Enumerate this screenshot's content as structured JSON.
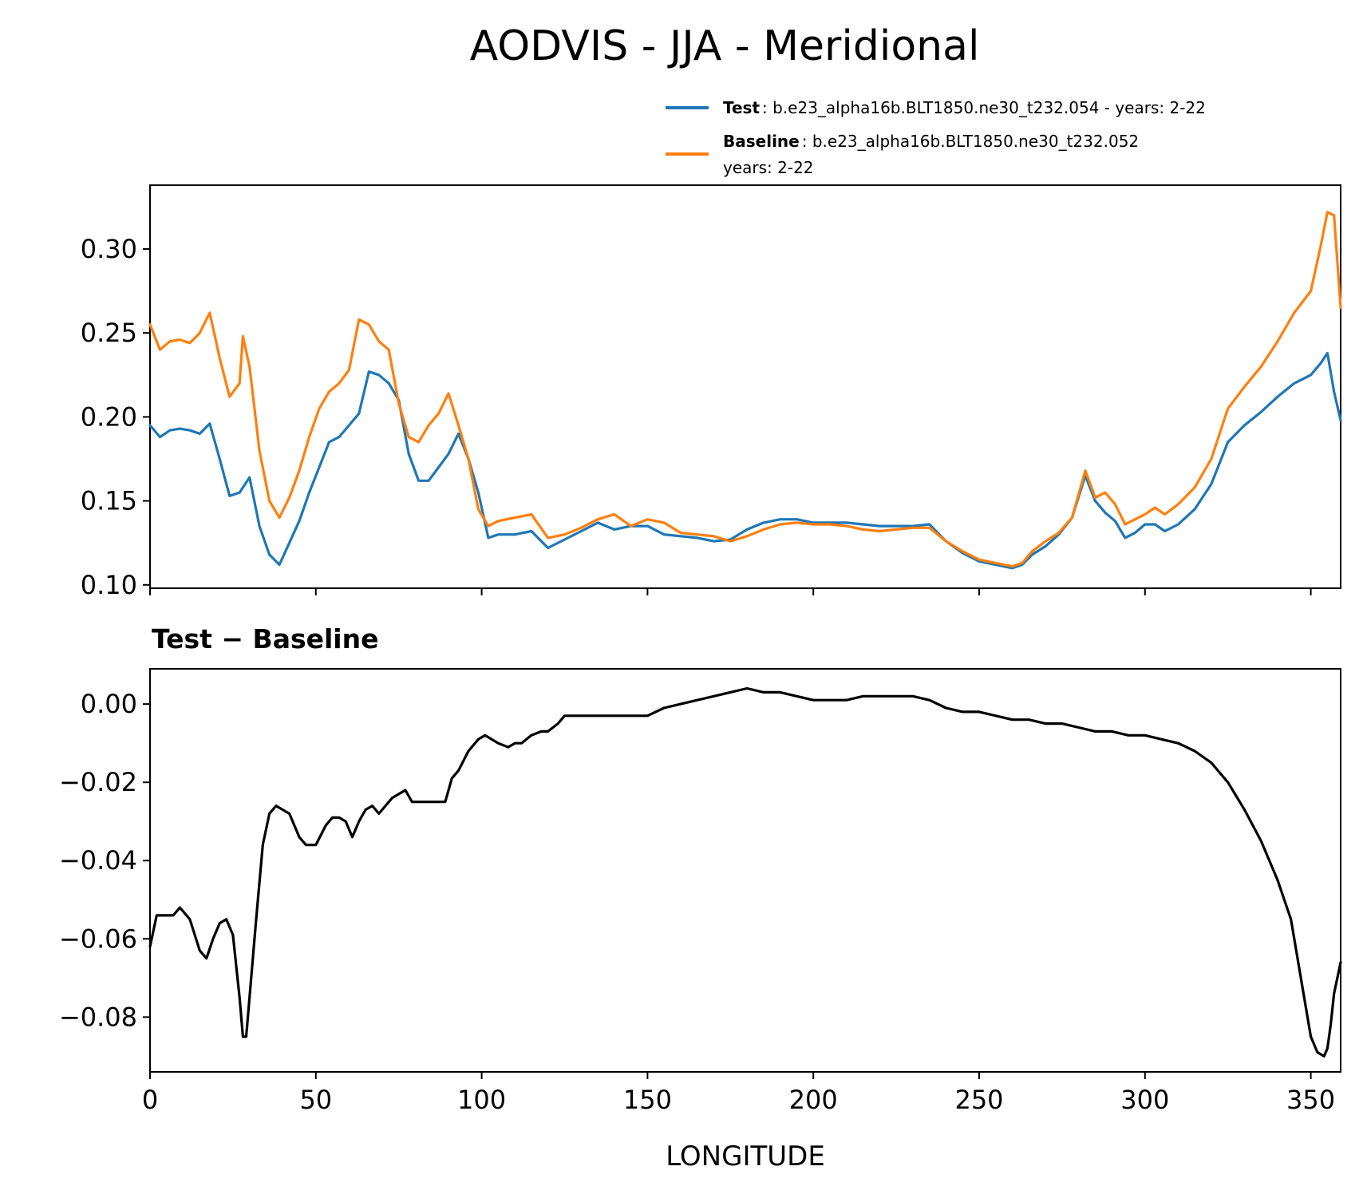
{
  "chart_data": [
    {
      "type": "line",
      "title": "AODVIS - JJA - Meridional",
      "xlabel": "",
      "ylabel": "",
      "xlim": [
        0,
        359
      ],
      "ylim": [
        0.098,
        0.338
      ],
      "xticks": [
        0,
        50,
        100,
        150,
        200,
        250,
        300,
        350
      ],
      "yticks": [
        0.1,
        0.15,
        0.2,
        0.25,
        0.3
      ],
      "ytick_labels": [
        "0.10",
        "0.15",
        "0.20",
        "0.25",
        "0.30"
      ],
      "legend_position": "top-right, above plot",
      "legend": [
        {
          "name": "Test",
          "desc": ": b.e23_alpha16b.BLT1850.ne30_t232.054 - years: 2-22",
          "desc2": "",
          "color": "#1f77b4"
        },
        {
          "name": "Baseline",
          "desc": ": b.e23_alpha16b.BLT1850.ne30_t232.052",
          "desc2": "years: 2-22",
          "color": "#ff7f0e"
        }
      ],
      "series": [
        {
          "name": "Test",
          "color": "#1f77b4",
          "x": [
            0,
            3,
            6,
            9,
            12,
            15,
            18,
            21,
            24,
            27,
            30,
            33,
            36,
            39,
            42,
            45,
            48,
            51,
            54,
            57,
            60,
            63,
            66,
            69,
            72,
            75,
            78,
            81,
            84,
            87,
            90,
            93,
            96,
            99,
            102,
            105,
            110,
            115,
            120,
            125,
            130,
            135,
            140,
            145,
            150,
            155,
            160,
            165,
            170,
            175,
            180,
            185,
            190,
            195,
            200,
            205,
            210,
            215,
            220,
            225,
            230,
            235,
            240,
            245,
            250,
            255,
            260,
            263,
            266,
            270,
            274,
            278,
            282,
            285,
            288,
            291,
            294,
            297,
            300,
            303,
            306,
            310,
            315,
            320,
            325,
            330,
            335,
            340,
            345,
            350,
            353,
            355,
            357,
            359
          ],
          "values": [
            0.195,
            0.188,
            0.192,
            0.193,
            0.192,
            0.19,
            0.196,
            0.175,
            0.153,
            0.155,
            0.164,
            0.135,
            0.118,
            0.112,
            0.125,
            0.138,
            0.155,
            0.17,
            0.185,
            0.188,
            0.195,
            0.202,
            0.227,
            0.225,
            0.22,
            0.21,
            0.178,
            0.162,
            0.162,
            0.17,
            0.178,
            0.19,
            0.175,
            0.155,
            0.128,
            0.13,
            0.13,
            0.132,
            0.122,
            0.127,
            0.132,
            0.137,
            0.133,
            0.135,
            0.135,
            0.13,
            0.129,
            0.128,
            0.126,
            0.127,
            0.133,
            0.137,
            0.139,
            0.139,
            0.137,
            0.137,
            0.137,
            0.136,
            0.135,
            0.135,
            0.135,
            0.136,
            0.126,
            0.119,
            0.114,
            0.112,
            0.11,
            0.112,
            0.118,
            0.123,
            0.13,
            0.14,
            0.165,
            0.15,
            0.143,
            0.138,
            0.128,
            0.131,
            0.136,
            0.136,
            0.132,
            0.136,
            0.145,
            0.16,
            0.185,
            0.195,
            0.203,
            0.212,
            0.22,
            0.225,
            0.232,
            0.238,
            0.215,
            0.198
          ]
        },
        {
          "name": "Baseline",
          "color": "#ff7f0e",
          "x": [
            0,
            3,
            6,
            9,
            12,
            15,
            18,
            21,
            24,
            27,
            28,
            30,
            33,
            36,
            39,
            42,
            45,
            48,
            51,
            54,
            57,
            60,
            63,
            66,
            69,
            72,
            75,
            78,
            81,
            84,
            87,
            90,
            93,
            96,
            99,
            102,
            105,
            110,
            115,
            120,
            125,
            130,
            135,
            140,
            145,
            150,
            155,
            160,
            165,
            170,
            175,
            180,
            185,
            190,
            195,
            200,
            205,
            210,
            215,
            220,
            225,
            230,
            235,
            240,
            245,
            250,
            255,
            260,
            263,
            266,
            270,
            274,
            278,
            282,
            285,
            288,
            291,
            294,
            297,
            300,
            303,
            306,
            310,
            315,
            320,
            325,
            330,
            335,
            340,
            345,
            350,
            353,
            355,
            357,
            359
          ],
          "values": [
            0.255,
            0.24,
            0.245,
            0.246,
            0.244,
            0.25,
            0.262,
            0.235,
            0.212,
            0.22,
            0.248,
            0.23,
            0.18,
            0.15,
            0.14,
            0.152,
            0.168,
            0.188,
            0.205,
            0.215,
            0.22,
            0.228,
            0.258,
            0.255,
            0.245,
            0.24,
            0.208,
            0.188,
            0.185,
            0.195,
            0.202,
            0.214,
            0.195,
            0.175,
            0.145,
            0.135,
            0.138,
            0.14,
            0.142,
            0.128,
            0.13,
            0.134,
            0.139,
            0.142,
            0.135,
            0.139,
            0.137,
            0.131,
            0.13,
            0.129,
            0.126,
            0.129,
            0.133,
            0.136,
            0.137,
            0.136,
            0.136,
            0.135,
            0.133,
            0.132,
            0.133,
            0.134,
            0.134,
            0.126,
            0.12,
            0.115,
            0.113,
            0.111,
            0.113,
            0.12,
            0.126,
            0.131,
            0.14,
            0.168,
            0.152,
            0.155,
            0.148,
            0.136,
            0.139,
            0.142,
            0.146,
            0.142,
            0.148,
            0.158,
            0.175,
            0.205,
            0.218,
            0.23,
            0.245,
            0.262,
            0.275,
            0.302,
            0.322,
            0.32,
            0.265
          ]
        }
      ]
    },
    {
      "type": "line",
      "title": "Test − Baseline",
      "xlabel": "LONGITUDE",
      "ylabel": "",
      "xlim": [
        0,
        359
      ],
      "ylim": [
        -0.094,
        0.009
      ],
      "xticks": [
        0,
        50,
        100,
        150,
        200,
        250,
        300,
        350
      ],
      "xtick_labels": [
        "0",
        "50",
        "100",
        "150",
        "200",
        "250",
        "300",
        "350"
      ],
      "yticks": [
        0.0,
        -0.02,
        -0.04,
        -0.06,
        -0.08
      ],
      "ytick_labels": [
        "0.00",
        "−0.02",
        "−0.04",
        "−0.06",
        "−0.08"
      ],
      "series": [
        {
          "name": "Test − Baseline",
          "color": "#000000",
          "x": [
            0,
            2,
            4,
            7,
            9,
            12,
            15,
            17,
            19,
            21,
            23,
            25,
            27,
            28,
            29,
            30,
            32,
            34,
            36,
            38,
            40,
            42,
            45,
            47,
            50,
            53,
            55,
            57,
            59,
            61,
            63,
            65,
            67,
            69,
            71,
            73,
            75,
            77,
            79,
            81,
            83,
            85,
            87,
            89,
            91,
            93,
            96,
            99,
            101,
            103,
            105,
            108,
            110,
            112,
            115,
            118,
            120,
            123,
            125,
            127,
            130,
            133,
            136,
            140,
            145,
            150,
            155,
            160,
            165,
            170,
            175,
            180,
            185,
            190,
            195,
            200,
            205,
            210,
            215,
            220,
            225,
            230,
            235,
            240,
            245,
            250,
            255,
            260,
            265,
            270,
            275,
            280,
            285,
            290,
            295,
            300,
            305,
            310,
            315,
            320,
            325,
            330,
            335,
            340,
            344,
            346,
            348,
            350,
            352,
            354,
            355,
            356,
            357,
            359
          ],
          "values": [
            -0.062,
            -0.054,
            -0.054,
            -0.054,
            -0.052,
            -0.055,
            -0.063,
            -0.065,
            -0.06,
            -0.056,
            -0.055,
            -0.059,
            -0.075,
            -0.085,
            -0.085,
            -0.075,
            -0.055,
            -0.036,
            -0.028,
            -0.026,
            -0.027,
            -0.028,
            -0.034,
            -0.036,
            -0.036,
            -0.031,
            -0.029,
            -0.029,
            -0.03,
            -0.034,
            -0.03,
            -0.027,
            -0.026,
            -0.028,
            -0.026,
            -0.024,
            -0.023,
            -0.022,
            -0.025,
            -0.025,
            -0.025,
            -0.025,
            -0.025,
            -0.025,
            -0.019,
            -0.017,
            -0.012,
            -0.009,
            -0.008,
            -0.009,
            -0.01,
            -0.011,
            -0.01,
            -0.01,
            -0.008,
            -0.007,
            -0.007,
            -0.005,
            -0.003,
            -0.003,
            -0.003,
            -0.003,
            -0.003,
            -0.003,
            -0.003,
            -0.003,
            -0.001,
            0.0,
            0.001,
            0.002,
            0.003,
            0.004,
            0.003,
            0.003,
            0.002,
            0.001,
            0.001,
            0.001,
            0.002,
            0.002,
            0.002,
            0.002,
            0.001,
            -0.001,
            -0.002,
            -0.002,
            -0.003,
            -0.004,
            -0.004,
            -0.005,
            -0.005,
            -0.006,
            -0.007,
            -0.007,
            -0.008,
            -0.008,
            -0.009,
            -0.01,
            -0.012,
            -0.015,
            -0.02,
            -0.027,
            -0.035,
            -0.045,
            -0.055,
            -0.065,
            -0.075,
            -0.085,
            -0.089,
            -0.09,
            -0.088,
            -0.082,
            -0.074,
            -0.066
          ]
        }
      ]
    }
  ]
}
